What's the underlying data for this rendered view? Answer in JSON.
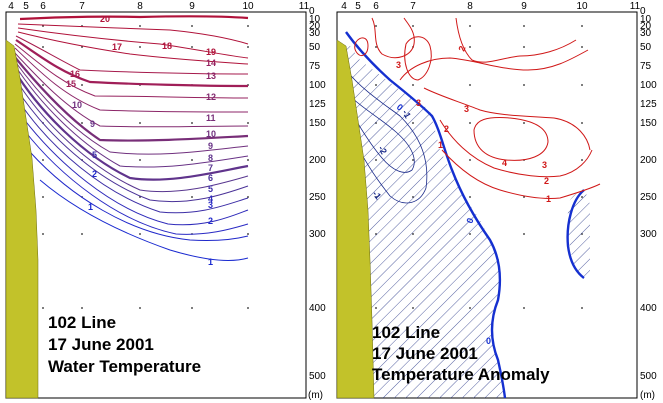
{
  "chart_data": [
    {
      "type": "contour",
      "caption": [
        "102 Line",
        "17 June 2001",
        "Water Temperature"
      ],
      "x_stations": [
        4,
        5,
        6,
        7,
        8,
        9,
        10,
        11
      ],
      "depth_ticks": [
        0,
        10,
        20,
        30,
        50,
        75,
        100,
        125,
        150,
        200,
        250,
        300,
        400,
        500
      ],
      "depth_unit": "(m)",
      "ylim": [
        0,
        500
      ],
      "xlim": [
        4,
        11
      ],
      "contour_labels": [
        20,
        19,
        18,
        17,
        16,
        15,
        14,
        13,
        12,
        11,
        10,
        9,
        8,
        7,
        6,
        5,
        4,
        3,
        2,
        1
      ],
      "colors": {
        "warm": "#b0123a",
        "mid": "#7a2aa8",
        "cold": "#1a2ad0",
        "land": "#c2c22a"
      }
    },
    {
      "type": "contour",
      "caption": [
        "102 Line",
        "17 June 2001",
        "Temperature Anomaly"
      ],
      "x_stations": [
        4,
        5,
        6,
        7,
        8,
        9,
        10,
        11
      ],
      "depth_ticks": [
        0,
        10,
        20,
        30,
        50,
        75,
        100,
        125,
        150,
        200,
        250,
        300,
        400,
        500
      ],
      "depth_unit": "(m)",
      "ylim": [
        0,
        500
      ],
      "xlim": [
        4,
        11
      ],
      "contour_labels": [
        -3,
        -2,
        -1,
        0,
        1,
        2,
        3,
        4
      ],
      "negative_hatched": true,
      "colors": {
        "positive": "#d01818",
        "zero": "#1530d0",
        "negative": "#1a2a8a",
        "land": "#c2c22a"
      }
    }
  ]
}
